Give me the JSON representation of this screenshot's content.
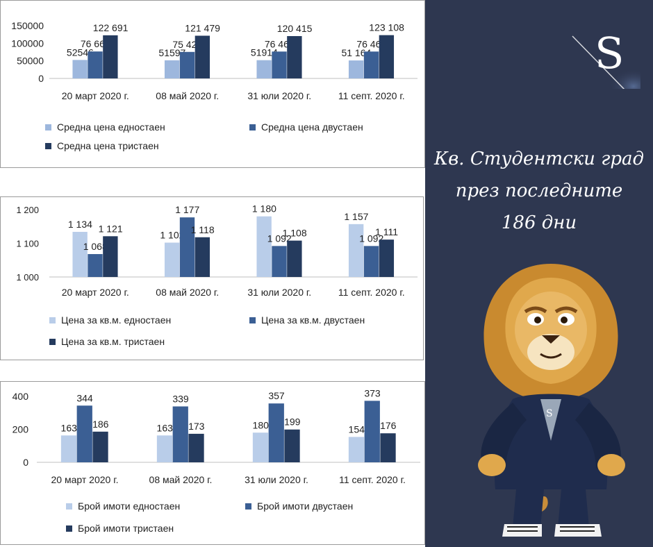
{
  "charts": [
    {
      "type": "bar",
      "categories": [
        "20 март 2020 г.",
        "08 май 2020 г.",
        "31 юли 2020 г.",
        "11 септ. 2020 г."
      ],
      "ylim": [
        0,
        150000
      ],
      "ticks": [
        {
          "v": 0,
          "label": "0"
        },
        {
          "v": 50000,
          "label": "50000"
        },
        {
          "v": 100000,
          "label": "100000"
        },
        {
          "v": 150000,
          "label": "150000"
        }
      ],
      "series": [
        {
          "name": "Средна цена едностаен",
          "color": "#9db7dd",
          "values": [
            52546,
            51597,
            51914,
            51164
          ],
          "labels": [
            "52546",
            "51597",
            "51914",
            "51 164"
          ]
        },
        {
          "name": "Средна цена двустаен",
          "color": "#3b5f94",
          "values": [
            76662,
            75424,
            76468,
            76466
          ],
          "labels": [
            "76 662",
            "75 424",
            "76 468",
            "76 466"
          ]
        },
        {
          "name": "Средна цена тристаен",
          "color": "#253b5e",
          "values": [
            122691,
            121479,
            120415,
            123108
          ],
          "labels": [
            "122 691",
            "121 479",
            "120 415",
            "123 108"
          ]
        }
      ]
    },
    {
      "type": "bar",
      "categories": [
        "20 март 2020 г.",
        "08 май 2020 г.",
        "31 юли 2020 г.",
        "11 септ. 2020 г."
      ],
      "ylim": [
        1000,
        1200
      ],
      "ticks": [
        {
          "v": 1000,
          "label": "1 000"
        },
        {
          "v": 1100,
          "label": "1 100"
        },
        {
          "v": 1200,
          "label": "1 200"
        }
      ],
      "series": [
        {
          "name": "Цена за кв.м. едностаен",
          "color": "#b9cde9",
          "values": [
            1134,
            1102,
            1180,
            1157
          ],
          "labels": [
            "1 134",
            "1 102",
            "1 180",
            "1 157"
          ]
        },
        {
          "name": "Цена за кв.м. двустаен",
          "color": "#3b5f94",
          "values": [
            1068,
            1177,
            1092,
            1092
          ],
          "labels": [
            "1 068",
            "1 177",
            "1 092",
            "1 092"
          ]
        },
        {
          "name": "Цена за кв.м. тристаен",
          "color": "#253b5e",
          "values": [
            1121,
            1118,
            1108,
            1111
          ],
          "labels": [
            "1 121",
            "1 118",
            "1 108",
            "1 111"
          ]
        }
      ]
    },
    {
      "type": "bar",
      "categories": [
        "20 март 2020 г.",
        "08 май 2020 г.",
        "31 юли 2020 г.",
        "11 септ. 2020 г."
      ],
      "ylim": [
        0,
        400
      ],
      "ticks": [
        {
          "v": 0,
          "label": "0"
        },
        {
          "v": 200,
          "label": "200"
        },
        {
          "v": 400,
          "label": "400"
        }
      ],
      "series": [
        {
          "name": "Брой имоти едностаен",
          "color": "#b9cde9",
          "values": [
            163,
            163,
            180,
            154
          ],
          "labels": [
            "163",
            "163",
            "180",
            "154"
          ]
        },
        {
          "name": "Брой имоти двустаен",
          "color": "#3b5f94",
          "values": [
            344,
            339,
            357,
            373
          ],
          "labels": [
            "344",
            "339",
            "357",
            "373"
          ]
        },
        {
          "name": "Брой имоти тристаен",
          "color": "#253b5e",
          "values": [
            186,
            173,
            199,
            176
          ],
          "labels": [
            "186",
            "173",
            "199",
            "176"
          ]
        }
      ]
    }
  ],
  "sidebar": {
    "logo_letter": "S",
    "title_lines": [
      "Кв. Студентски град",
      "през последните",
      "186 дни"
    ],
    "background": "#2e3750"
  }
}
